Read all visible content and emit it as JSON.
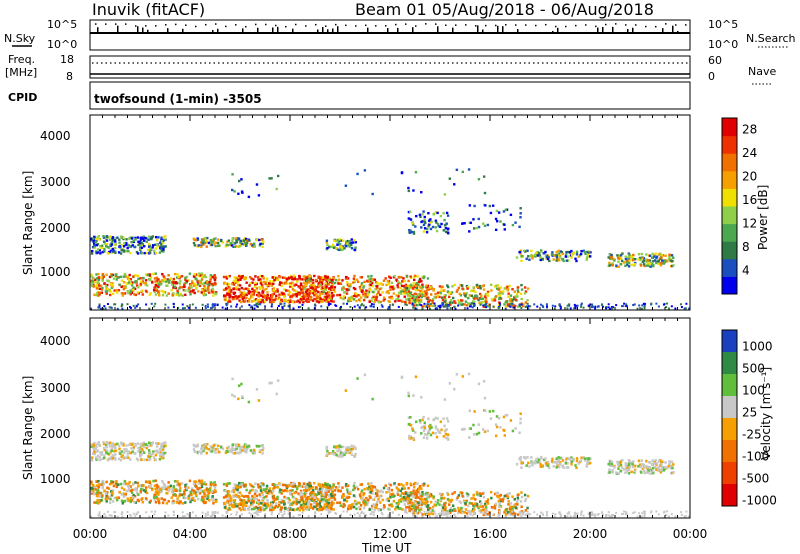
{
  "header": {
    "station": "Inuvik (fitACF)",
    "beam_date": "Beam 01  05/Aug/2018 - 06/Aug/2018"
  },
  "panels": {
    "nsky": {
      "left_label": "N.Sky",
      "left_ticks": [
        "10^5",
        "10^0"
      ],
      "right_ticks": [
        "10^5",
        "10^0"
      ],
      "right_label": "N.Search"
    },
    "freq": {
      "left_label_1": "Freq.",
      "left_label_2": "[MHz]",
      "left_ticks": [
        "18",
        "8"
      ],
      "right_ticks": [
        "60",
        "0"
      ],
      "right_label": "Nave"
    },
    "cpid": {
      "label": "CPID",
      "program": "twofsound (1-min) -3505"
    },
    "power": {
      "ylabel": "Slant Range [km]",
      "yticks": [
        "4000",
        "3000",
        "2000",
        "1000"
      ],
      "colorbar_label": "Power [dB]",
      "colorbar_ticks": [
        "28",
        "24",
        "20",
        "16",
        "12",
        "8",
        "4"
      ],
      "colors": [
        "#0000ee",
        "#1a4fbf",
        "#2f7a45",
        "#4ca84f",
        "#8fd04a",
        "#f0e000",
        "#f5a000",
        "#f07000",
        "#ef3000",
        "#e00000"
      ]
    },
    "velocity": {
      "ylabel": "Slant Range [km]",
      "yticks": [
        "4000",
        "3000",
        "2000",
        "1000"
      ],
      "colorbar_label": "Velocity [m s⁻¹]",
      "colorbar_ticks": [
        "1000",
        "500",
        "100",
        "25",
        "-25",
        "-100",
        "-500",
        "-1000"
      ],
      "colors": [
        "#1a3fbf",
        "#2f8a45",
        "#5fbe3a",
        "#c8c8c8",
        "#f5a000",
        "#f07000",
        "#f04000",
        "#e00000"
      ]
    }
  },
  "xaxis": {
    "ticks": [
      "00:00",
      "04:00",
      "08:00",
      "12:00",
      "16:00",
      "20:00",
      "00:00"
    ],
    "label": "Time UT"
  },
  "chart_data": {
    "type": "heatmap",
    "xlabel": "Time UT",
    "ylabel": "Slant Range [km]",
    "xlim_hours": [
      0,
      24
    ],
    "ylim": [
      200,
      4600
    ],
    "power_colorbar_range_db": [
      0,
      30
    ],
    "velocity_colorbar_range_ms": [
      -1000,
      1000
    ]
  }
}
